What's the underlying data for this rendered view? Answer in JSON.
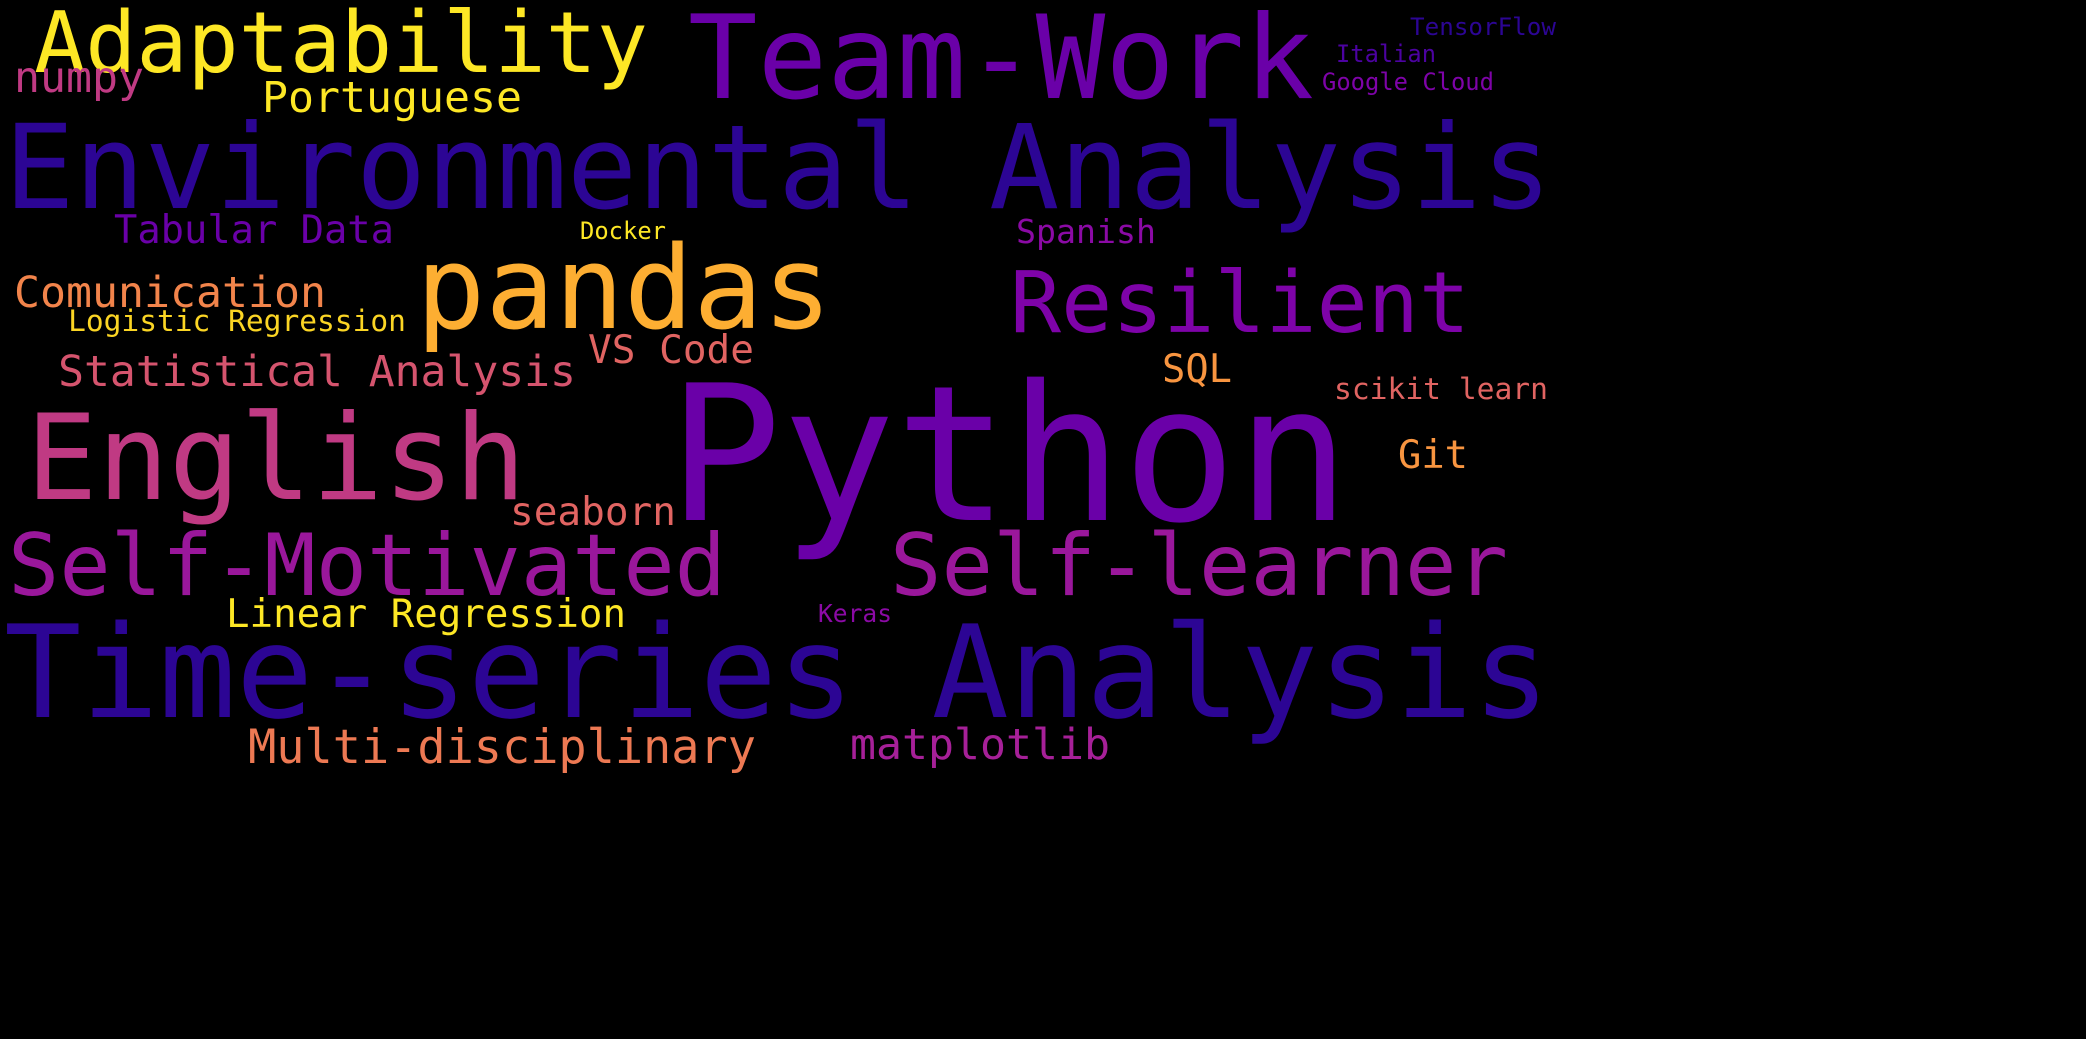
{
  "background": "#000000",
  "words": [
    {
      "id": "python",
      "text": "Python",
      "color": "#6a00a8"
    },
    {
      "id": "environmental-analysis",
      "text": "Environmental Analysis",
      "color": "#2c0594"
    },
    {
      "id": "time-series-analysis",
      "text": "Time-series Analysis",
      "color": "#2c0594"
    },
    {
      "id": "team-work",
      "text": "Team-Work",
      "color": "#6a00a8"
    },
    {
      "id": "english",
      "text": "English",
      "color": "#c03a83"
    },
    {
      "id": "adaptability",
      "text": "Adaptability",
      "color": "#fde725"
    },
    {
      "id": "pandas",
      "text": "pandas",
      "color": "#fdae32"
    },
    {
      "id": "self-motivated",
      "text": "Self-Motivated",
      "color": "#9a179b"
    },
    {
      "id": "self-learner",
      "text": "Self-learner",
      "color": "#9a179b"
    },
    {
      "id": "resilient",
      "text": "Resilient",
      "color": "#7e03a8"
    },
    {
      "id": "multi-disciplinary",
      "text": "Multi-disciplinary",
      "color": "#ed7953"
    },
    {
      "id": "statistical-analysis",
      "text": "Statistical Analysis",
      "color": "#d5546e"
    },
    {
      "id": "matplotlib",
      "text": "matplotlib",
      "color": "#a62098"
    },
    {
      "id": "comunication",
      "text": "Comunication",
      "color": "#f2844b"
    },
    {
      "id": "portuguese",
      "text": "Portuguese",
      "color": "#fde725"
    },
    {
      "id": "tabular-data",
      "text": "Tabular Data",
      "color": "#6a00a8"
    },
    {
      "id": "linear-regression",
      "text": "Linear Regression",
      "color": "#fde725"
    },
    {
      "id": "numpy",
      "text": "numpy",
      "color": "#c03a83"
    },
    {
      "id": "seaborn",
      "text": "seaborn",
      "color": "#e16462"
    },
    {
      "id": "vs-code",
      "text": "VS Code",
      "color": "#e16462"
    },
    {
      "id": "spanish",
      "text": "Spanish",
      "color": "#8b0aa5"
    },
    {
      "id": "logistic-regression",
      "text": "Logistic Regression",
      "color": "#fbd524"
    },
    {
      "id": "sql",
      "text": "SQL",
      "color": "#f89540"
    },
    {
      "id": "git",
      "text": "Git",
      "color": "#f89540"
    },
    {
      "id": "scikit-learn",
      "text": "scikit learn",
      "color": "#e16462"
    },
    {
      "id": "tensorflow",
      "text": "TensorFlow",
      "color": "#2c0594"
    },
    {
      "id": "italian",
      "text": "Italian",
      "color": "#4c02a1"
    },
    {
      "id": "google-cloud",
      "text": "Google Cloud",
      "color": "#7e03a8"
    },
    {
      "id": "docker",
      "text": "Docker",
      "color": "#fde725"
    },
    {
      "id": "keras",
      "text": "Keras",
      "color": "#8b0aa5"
    }
  ]
}
